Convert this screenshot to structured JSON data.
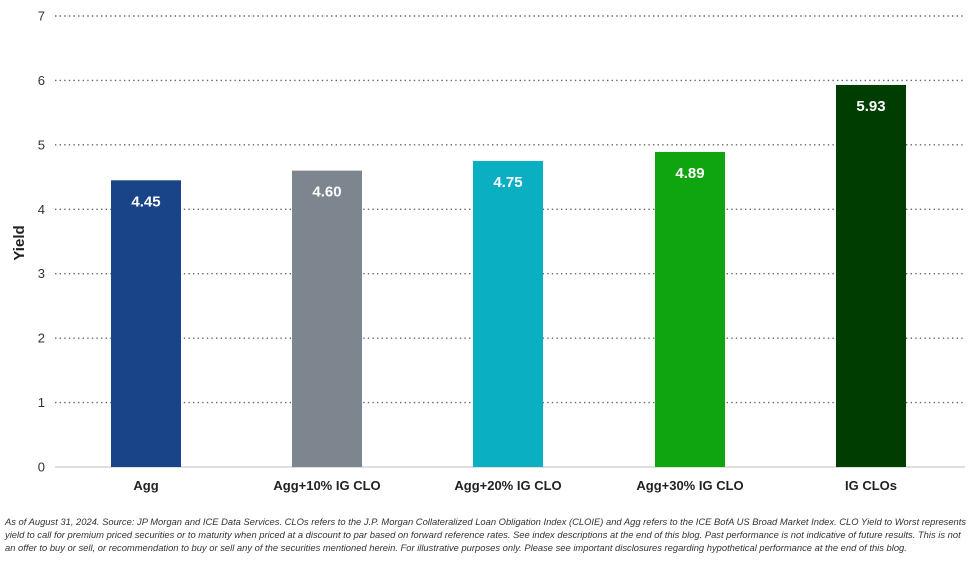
{
  "chart_data": {
    "type": "bar",
    "title": "",
    "xlabel": "",
    "ylabel": "Yield",
    "ylim": [
      0,
      7
    ],
    "yticks": [
      "0",
      "1",
      "2",
      "3",
      "4",
      "5",
      "6",
      "7"
    ],
    "grid": "horizontal dotted",
    "legend": "none",
    "categories": [
      "Agg",
      "Agg+10% IG CLO",
      "Agg+20% IG CLO",
      "Agg+30% IG CLO",
      "IG CLOs"
    ],
    "values": [
      4.45,
      4.6,
      4.75,
      4.89,
      5.93
    ],
    "data_labels": [
      "4.45",
      "4.60",
      "4.75",
      "4.89",
      "5.93"
    ],
    "colors": [
      "#1a4488",
      "#7d868e",
      "#0ab0c2",
      "#0fa50f",
      "#003d00"
    ]
  },
  "footnote": "As of August 31, 2024. Source: JP Morgan and ICE Data Services. CLOs refers to the J.P. Morgan Collateralized Loan Obligation Index (CLOIE) and Agg refers to the ICE BofA US Broad Market Index. CLO Yield to Worst represents yield to call for premium priced securities or to maturity when priced at a discount to par based on forward reference rates. See index descriptions at the end of this blog. Past performance is not indicative of future results. This is not an offer to buy or sell, or recommendation to buy or sell any of the securities mentioned herein. For illustrative purposes only. Please see important disclosures regarding hypothetical performance at the end of this blog."
}
